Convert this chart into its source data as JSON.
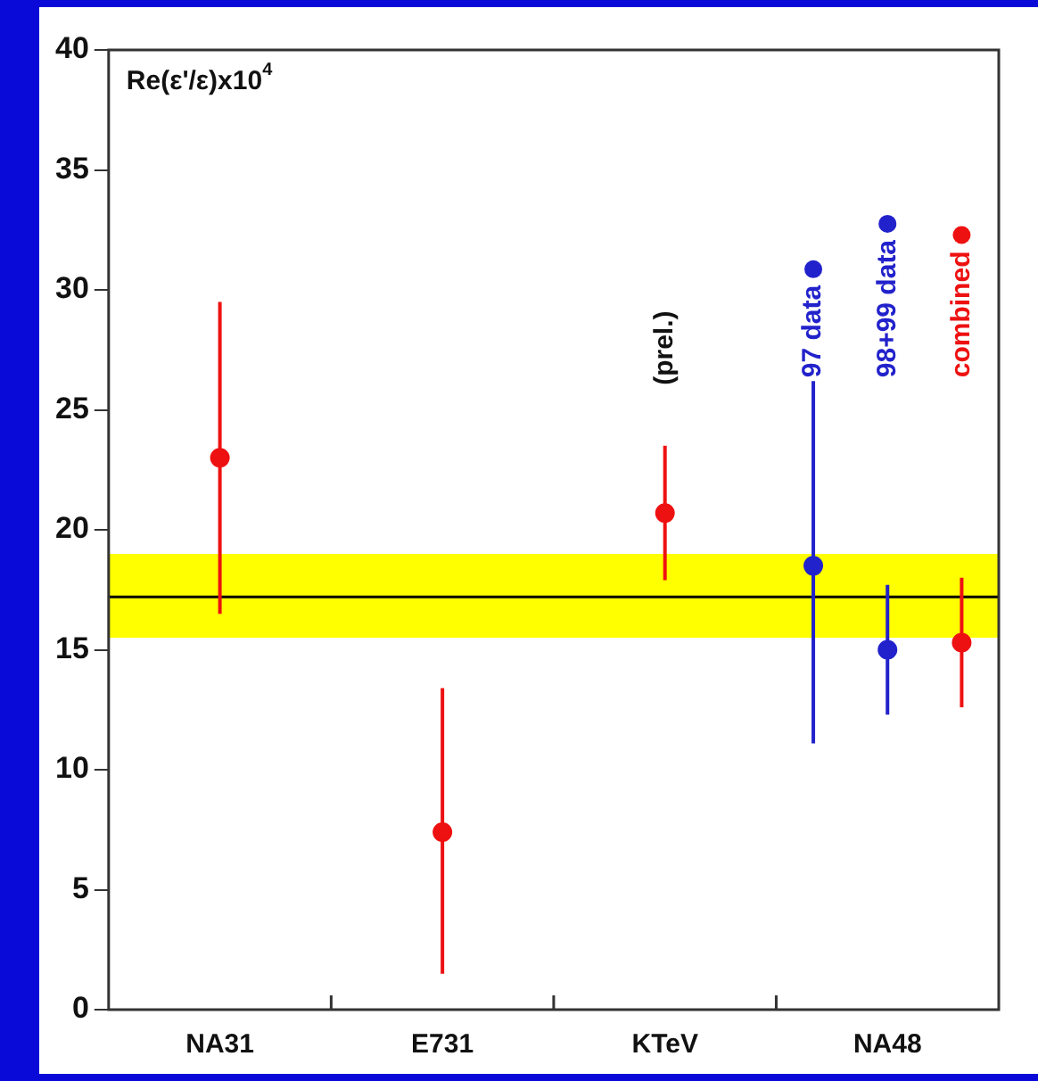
{
  "chart_data": {
    "type": "scatter",
    "title": "Re(ε'/ε)x10$^{4}$",
    "categories": [
      null,
      "NA31",
      null,
      null,
      "E731",
      null,
      null,
      "KTeV",
      null,
      null,
      "NA48",
      null
    ],
    "ylim": [
      0,
      40
    ],
    "yticks": [
      0,
      5,
      10,
      15,
      20,
      25,
      30,
      35,
      40
    ],
    "series": [
      {
        "color": "#ee1111",
        "values": [
          null,
          23.0,
          null,
          null,
          7.4,
          null,
          null,
          20.7,
          null,
          null,
          null,
          null
        ],
        "errors": [
          null,
          [
            16.5,
            29.5
          ],
          null,
          null,
          [
            1.5,
            13.4
          ],
          null,
          null,
          [
            17.9,
            23.5
          ],
          null,
          null,
          null,
          null
        ]
      },
      {
        "name": "97 data",
        "color": "#2222cc",
        "values": [
          null,
          null,
          null,
          null,
          null,
          null,
          null,
          null,
          null,
          18.5,
          null,
          null
        ],
        "errors": [
          null,
          null,
          null,
          null,
          null,
          null,
          null,
          null,
          null,
          [
            11.1,
            26.2
          ],
          null,
          null
        ]
      },
      {
        "name": "98+99 data",
        "color": "#2222cc",
        "values": [
          null,
          null,
          null,
          null,
          null,
          null,
          null,
          null,
          null,
          null,
          15.0,
          null
        ],
        "errors": [
          null,
          null,
          null,
          null,
          null,
          null,
          null,
          null,
          null,
          null,
          [
            12.3,
            17.7
          ],
          null
        ]
      },
      {
        "name": "combined",
        "color": "#ee1111",
        "values": [
          null,
          null,
          null,
          null,
          null,
          null,
          null,
          null,
          null,
          null,
          null,
          15.3
        ],
        "errors": [
          null,
          null,
          null,
          null,
          null,
          null,
          null,
          null,
          null,
          null,
          null,
          [
            12.6,
            18.0
          ]
        ]
      }
    ],
    "ref_lines": [
      {
        "axis": "y",
        "value": 17.2,
        "color": "#000000"
      }
    ],
    "bands": [
      {
        "axis": "y",
        "from": 15.5,
        "to": 19.0,
        "color": "#ffff00"
      }
    ],
    "annotations": [
      {
        "text": "(prel.)",
        "x": "KTeV",
        "y": 23.5
      }
    ],
    "marker": "circle",
    "grid": false,
    "legend": "top right"
  }
}
